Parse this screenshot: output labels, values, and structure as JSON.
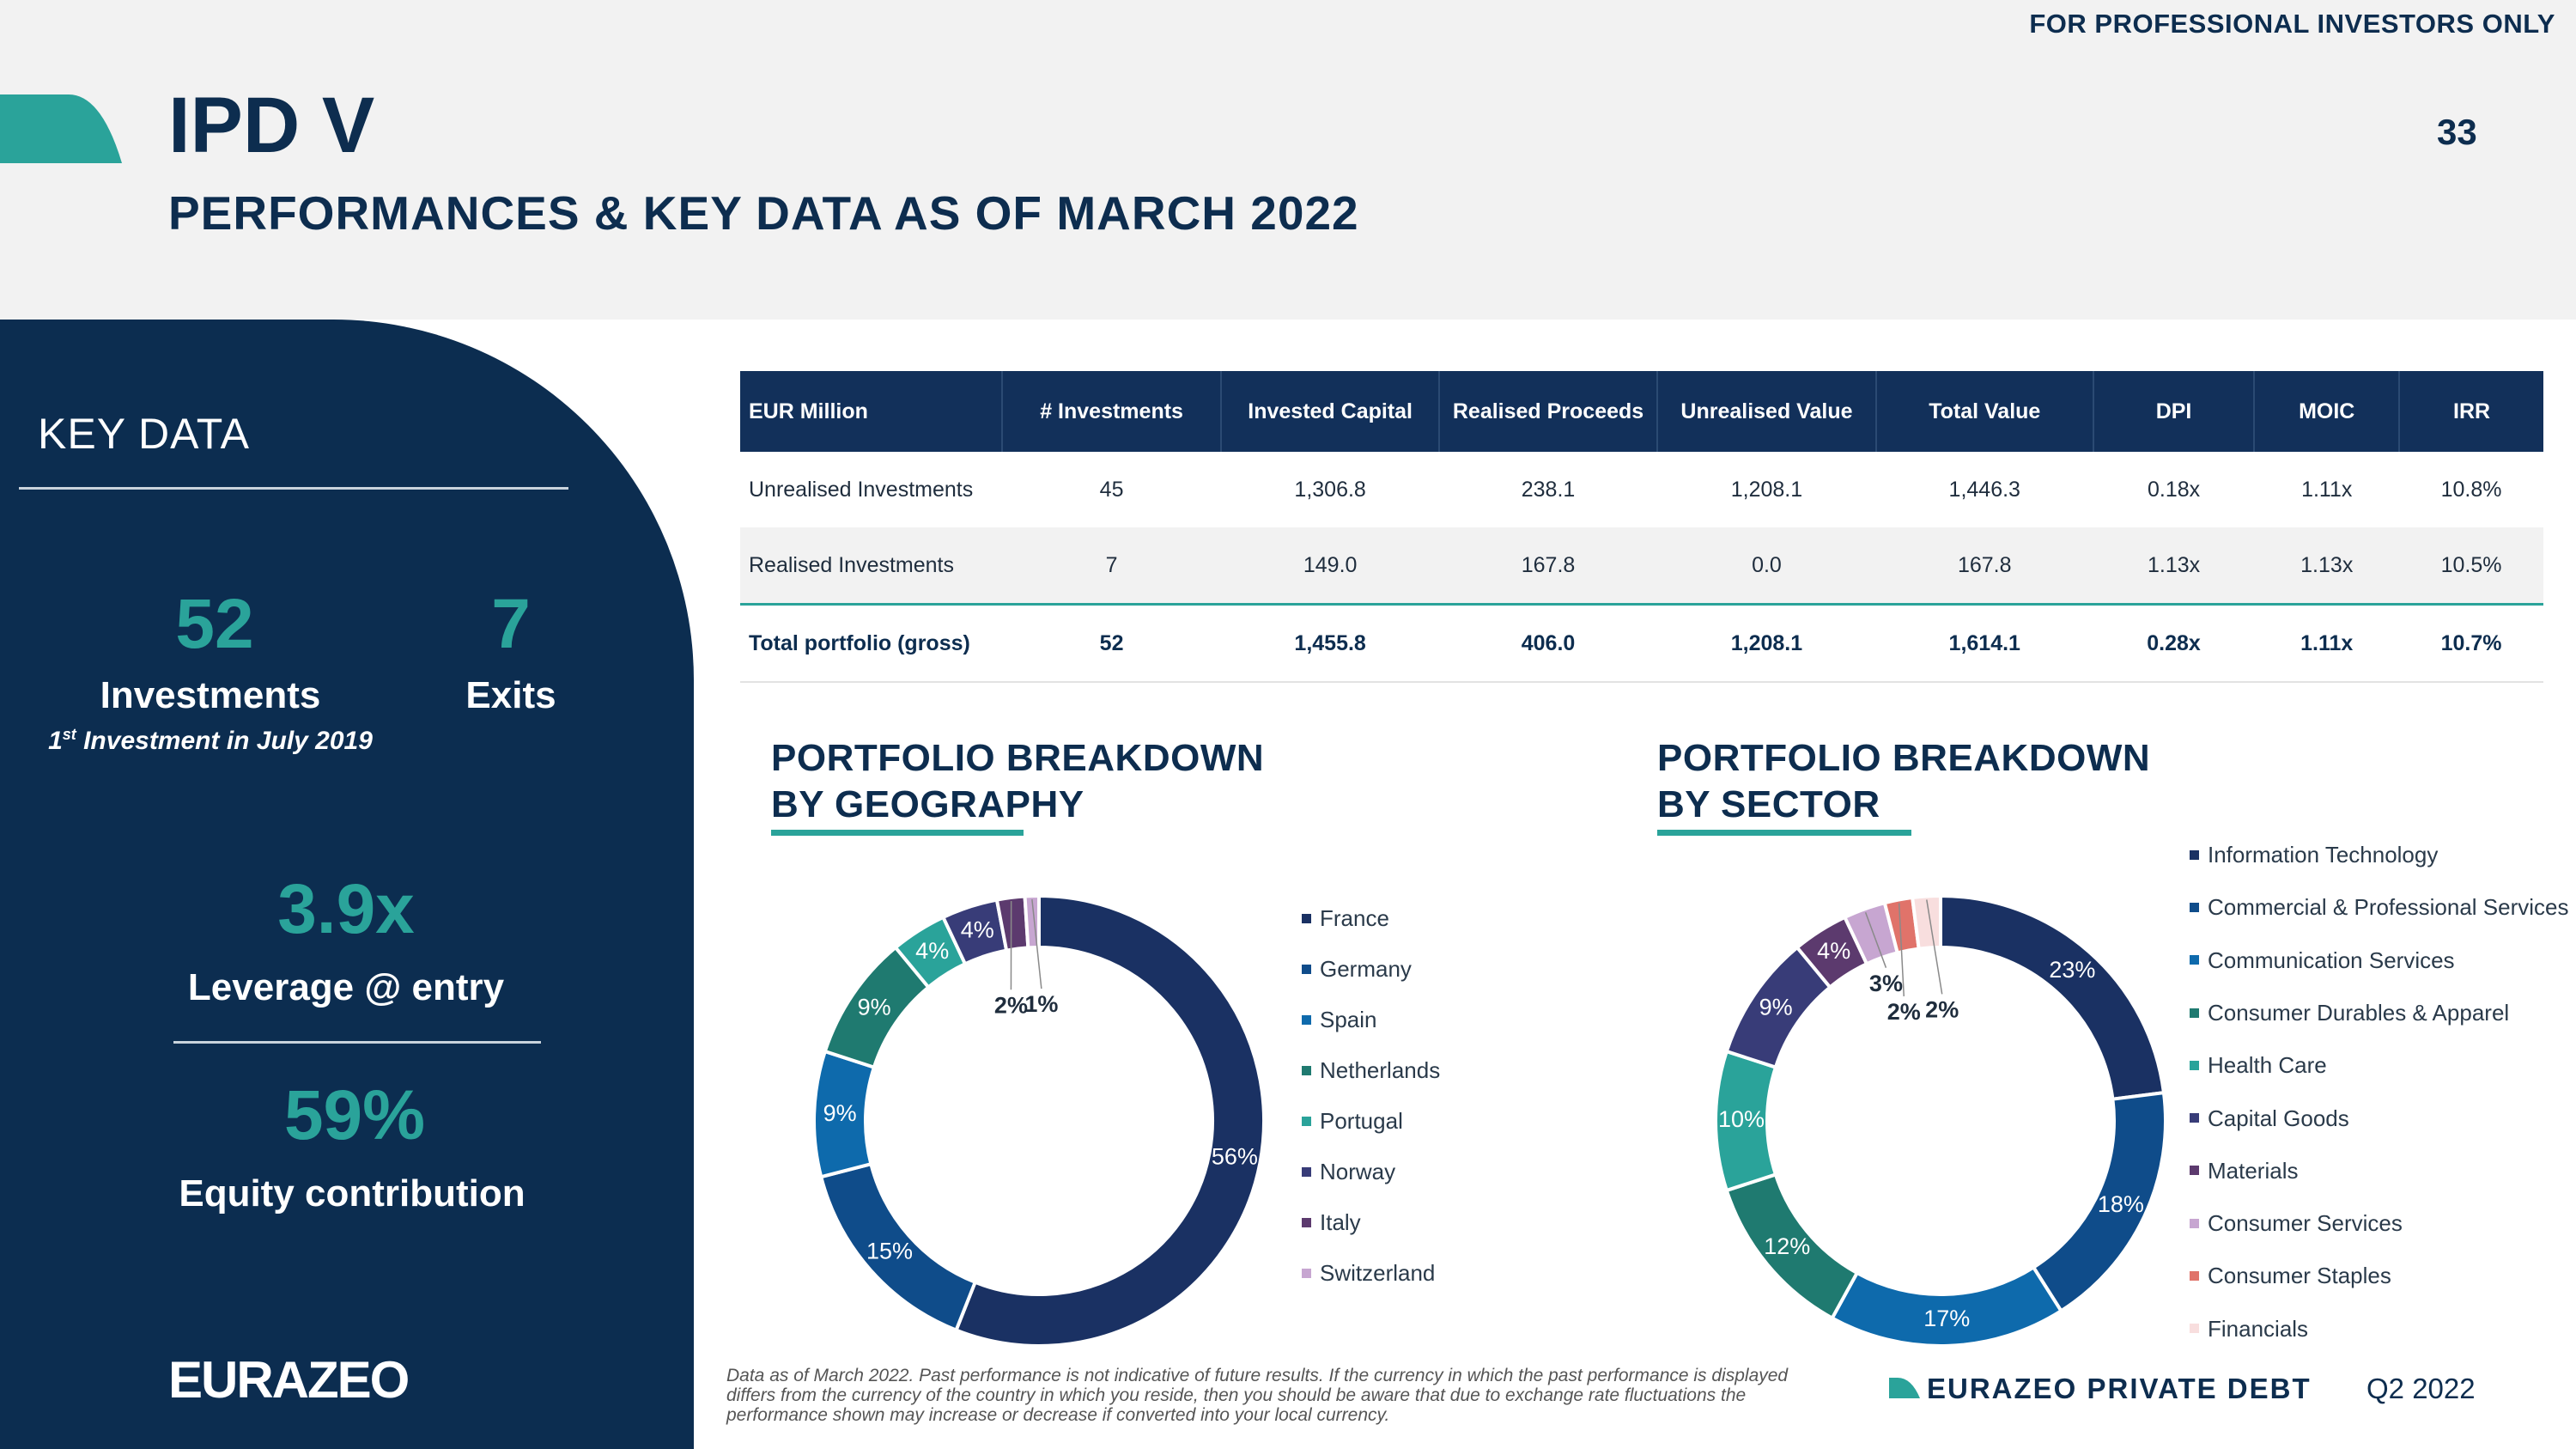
{
  "header": {
    "disclaimer": "FOR PROFESSIONAL INVESTORS ONLY",
    "title": "IPD V",
    "subtitle": "PERFORMANCES & KEY DATA AS OF MARCH 2022",
    "page_number": "33"
  },
  "key_data": {
    "title": "KEY DATA",
    "investments_value": "52",
    "investments_label": "Investments",
    "first_investment_ordinal": "1",
    "first_investment_suffix": "st",
    "first_investment_text": " Investment in July 2019",
    "exits_value": "7",
    "exits_label": "Exits",
    "leverage_value": "3.9x",
    "leverage_label": "Leverage @ entry",
    "equity_value": "59%",
    "equity_label": "Equity contribution",
    "logo": "EURAZEO"
  },
  "table": {
    "headers": [
      "EUR Million",
      "# Investments",
      "Invested Capital",
      "Realised Proceeds",
      "Unrealised Value",
      "Total Value",
      "DPI",
      "MOIC",
      "IRR"
    ],
    "rows": [
      [
        "Unrealised Investments",
        "45",
        "1,306.8",
        "238.1",
        "1,208.1",
        "1,446.3",
        "0.18x",
        "1.11x",
        "10.8%"
      ],
      [
        "Realised Investments",
        "7",
        "149.0",
        "167.8",
        "0.0",
        "167.8",
        "1.13x",
        "1.13x",
        "10.5%"
      ],
      [
        "Total portfolio (gross)",
        "52",
        "1,455.8",
        "406.0",
        "1,208.1",
        "1,614.1",
        "0.28x",
        "1.11x",
        "10.7%"
      ]
    ]
  },
  "chart_data": [
    {
      "type": "pie",
      "title": "PORTFOLIO BREAKDOWN BY GEOGRAPHY",
      "title_line1": "PORTFOLIO BREAKDOWN",
      "title_line2": "BY GEOGRAPHY",
      "categories": [
        "France",
        "Germany",
        "Spain",
        "Netherlands",
        "Portugal",
        "Norway",
        "Italy",
        "Switzerland"
      ],
      "values": [
        56,
        15,
        9,
        9,
        4,
        4,
        2,
        1
      ],
      "labels": [
        "56%",
        "15%",
        "9%",
        "9%",
        "4%",
        "4%",
        "2%",
        "1%"
      ],
      "colors": [
        "#1a3163",
        "#0f4c8a",
        "#0e6aac",
        "#1f7a70",
        "#2aa39a",
        "#383c78",
        "#5c3a6e",
        "#c7a6d1"
      ],
      "legend_position": "right"
    },
    {
      "type": "pie",
      "title": "PORTFOLIO BREAKDOWN BY SECTOR",
      "title_line1": "PORTFOLIO BREAKDOWN",
      "title_line2": "BY SECTOR",
      "categories": [
        "Information Technology",
        "Commercial  & Professional Services",
        "Communication Services",
        "Consumer Durables & Apparel",
        "Health Care",
        "Capital Goods",
        "Materials",
        "Consumer Services",
        "Consumer Staples",
        "Financials"
      ],
      "values": [
        23,
        18,
        17,
        12,
        10,
        9,
        4,
        3,
        2,
        2
      ],
      "labels": [
        "23%",
        "18%",
        "17%",
        "12%",
        "10%",
        "9%",
        "4%",
        "3%",
        "2%",
        "2%"
      ],
      "colors": [
        "#1a3163",
        "#0f4c8a",
        "#0e6aac",
        "#1f7a70",
        "#2aa39a",
        "#383c78",
        "#5c3a6e",
        "#c7a6d1",
        "#e0736a",
        "#f8dede"
      ],
      "legend_position": "right"
    }
  ],
  "footer": {
    "footnote": "Data as of March 2022. Past performance is not indicative of future results. If the currency in which the past performance is displayed differs from the currency of the country in which you reside, then you should be aware that due to exchange rate fluctuations the performance shown may increase or decrease if converted into your local currency.",
    "brand": "EURAZEO PRIVATE DEBT",
    "quarter": "Q2 2022",
    "accent_color": "#2aa39a"
  }
}
